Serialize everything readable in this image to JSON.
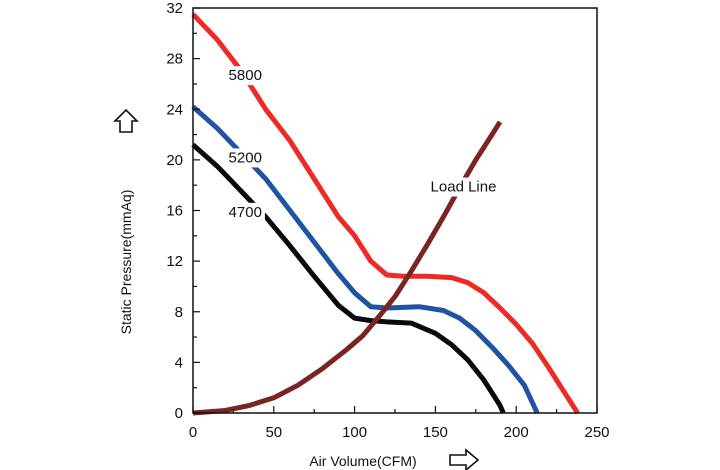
{
  "chart_data": {
    "type": "line",
    "title": "",
    "xlabel": "Air Volume(CFM)",
    "ylabel": "Static Pressure(mmAq)",
    "xlim": [
      0,
      250
    ],
    "ylim": [
      0,
      32
    ],
    "xticks": [
      0,
      50,
      100,
      150,
      200,
      250
    ],
    "yticks": [
      0,
      4,
      8,
      12,
      16,
      20,
      24,
      28,
      32
    ],
    "grid": false,
    "series": [
      {
        "name": "5800",
        "color": "#ee2a24",
        "points": [
          [
            0,
            31.5
          ],
          [
            15,
            29.5
          ],
          [
            30,
            27.0
          ],
          [
            45,
            24.0
          ],
          [
            60,
            21.5
          ],
          [
            75,
            18.5
          ],
          [
            90,
            15.5
          ],
          [
            100,
            14.0
          ],
          [
            110,
            12.0
          ],
          [
            120,
            10.9
          ],
          [
            130,
            10.8
          ],
          [
            145,
            10.8
          ],
          [
            160,
            10.7
          ],
          [
            170,
            10.3
          ],
          [
            180,
            9.5
          ],
          [
            190,
            8.3
          ],
          [
            200,
            7.0
          ],
          [
            210,
            5.5
          ],
          [
            220,
            3.6
          ],
          [
            230,
            1.6
          ],
          [
            238,
            0
          ]
        ]
      },
      {
        "name": "5200",
        "color": "#2152a3",
        "points": [
          [
            0,
            24.2
          ],
          [
            15,
            22.5
          ],
          [
            30,
            20.5
          ],
          [
            45,
            18.5
          ],
          [
            60,
            16.0
          ],
          [
            75,
            13.5
          ],
          [
            90,
            11.0
          ],
          [
            100,
            9.5
          ],
          [
            110,
            8.4
          ],
          [
            120,
            8.3
          ],
          [
            140,
            8.4
          ],
          [
            155,
            8.1
          ],
          [
            165,
            7.5
          ],
          [
            175,
            6.5
          ],
          [
            185,
            5.2
          ],
          [
            195,
            3.8
          ],
          [
            205,
            2.2
          ],
          [
            213,
            0
          ]
        ]
      },
      {
        "name": "4700",
        "color": "#0a0a0a",
        "points": [
          [
            0,
            21.2
          ],
          [
            15,
            19.5
          ],
          [
            30,
            17.5
          ],
          [
            45,
            15.5
          ],
          [
            60,
            13.2
          ],
          [
            75,
            10.8
          ],
          [
            90,
            8.5
          ],
          [
            100,
            7.5
          ],
          [
            110,
            7.3
          ],
          [
            120,
            7.2
          ],
          [
            135,
            7.1
          ],
          [
            150,
            6.3
          ],
          [
            160,
            5.4
          ],
          [
            170,
            4.2
          ],
          [
            180,
            2.6
          ],
          [
            190,
            0.6
          ],
          [
            192,
            0
          ]
        ]
      },
      {
        "name": "Load Line",
        "color": "#7a2424",
        "points": [
          [
            0,
            0
          ],
          [
            20,
            0.2
          ],
          [
            35,
            0.6
          ],
          [
            50,
            1.2
          ],
          [
            65,
            2.2
          ],
          [
            80,
            3.5
          ],
          [
            95,
            5.0
          ],
          [
            105,
            6.1
          ],
          [
            115,
            7.6
          ],
          [
            125,
            9.2
          ],
          [
            135,
            11.2
          ],
          [
            145,
            13.3
          ],
          [
            155,
            15.5
          ],
          [
            165,
            17.8
          ],
          [
            175,
            20.0
          ],
          [
            185,
            22.0
          ],
          [
            190,
            23.0
          ]
        ]
      }
    ],
    "annotations": [
      {
        "text": "5800",
        "x": 22,
        "y": 26.3
      },
      {
        "text": "5200",
        "x": 22,
        "y": 19.8
      },
      {
        "text": "4700",
        "x": 22,
        "y": 15.5
      },
      {
        "text": "Load Line",
        "x": 147,
        "y": 17.5
      }
    ]
  }
}
